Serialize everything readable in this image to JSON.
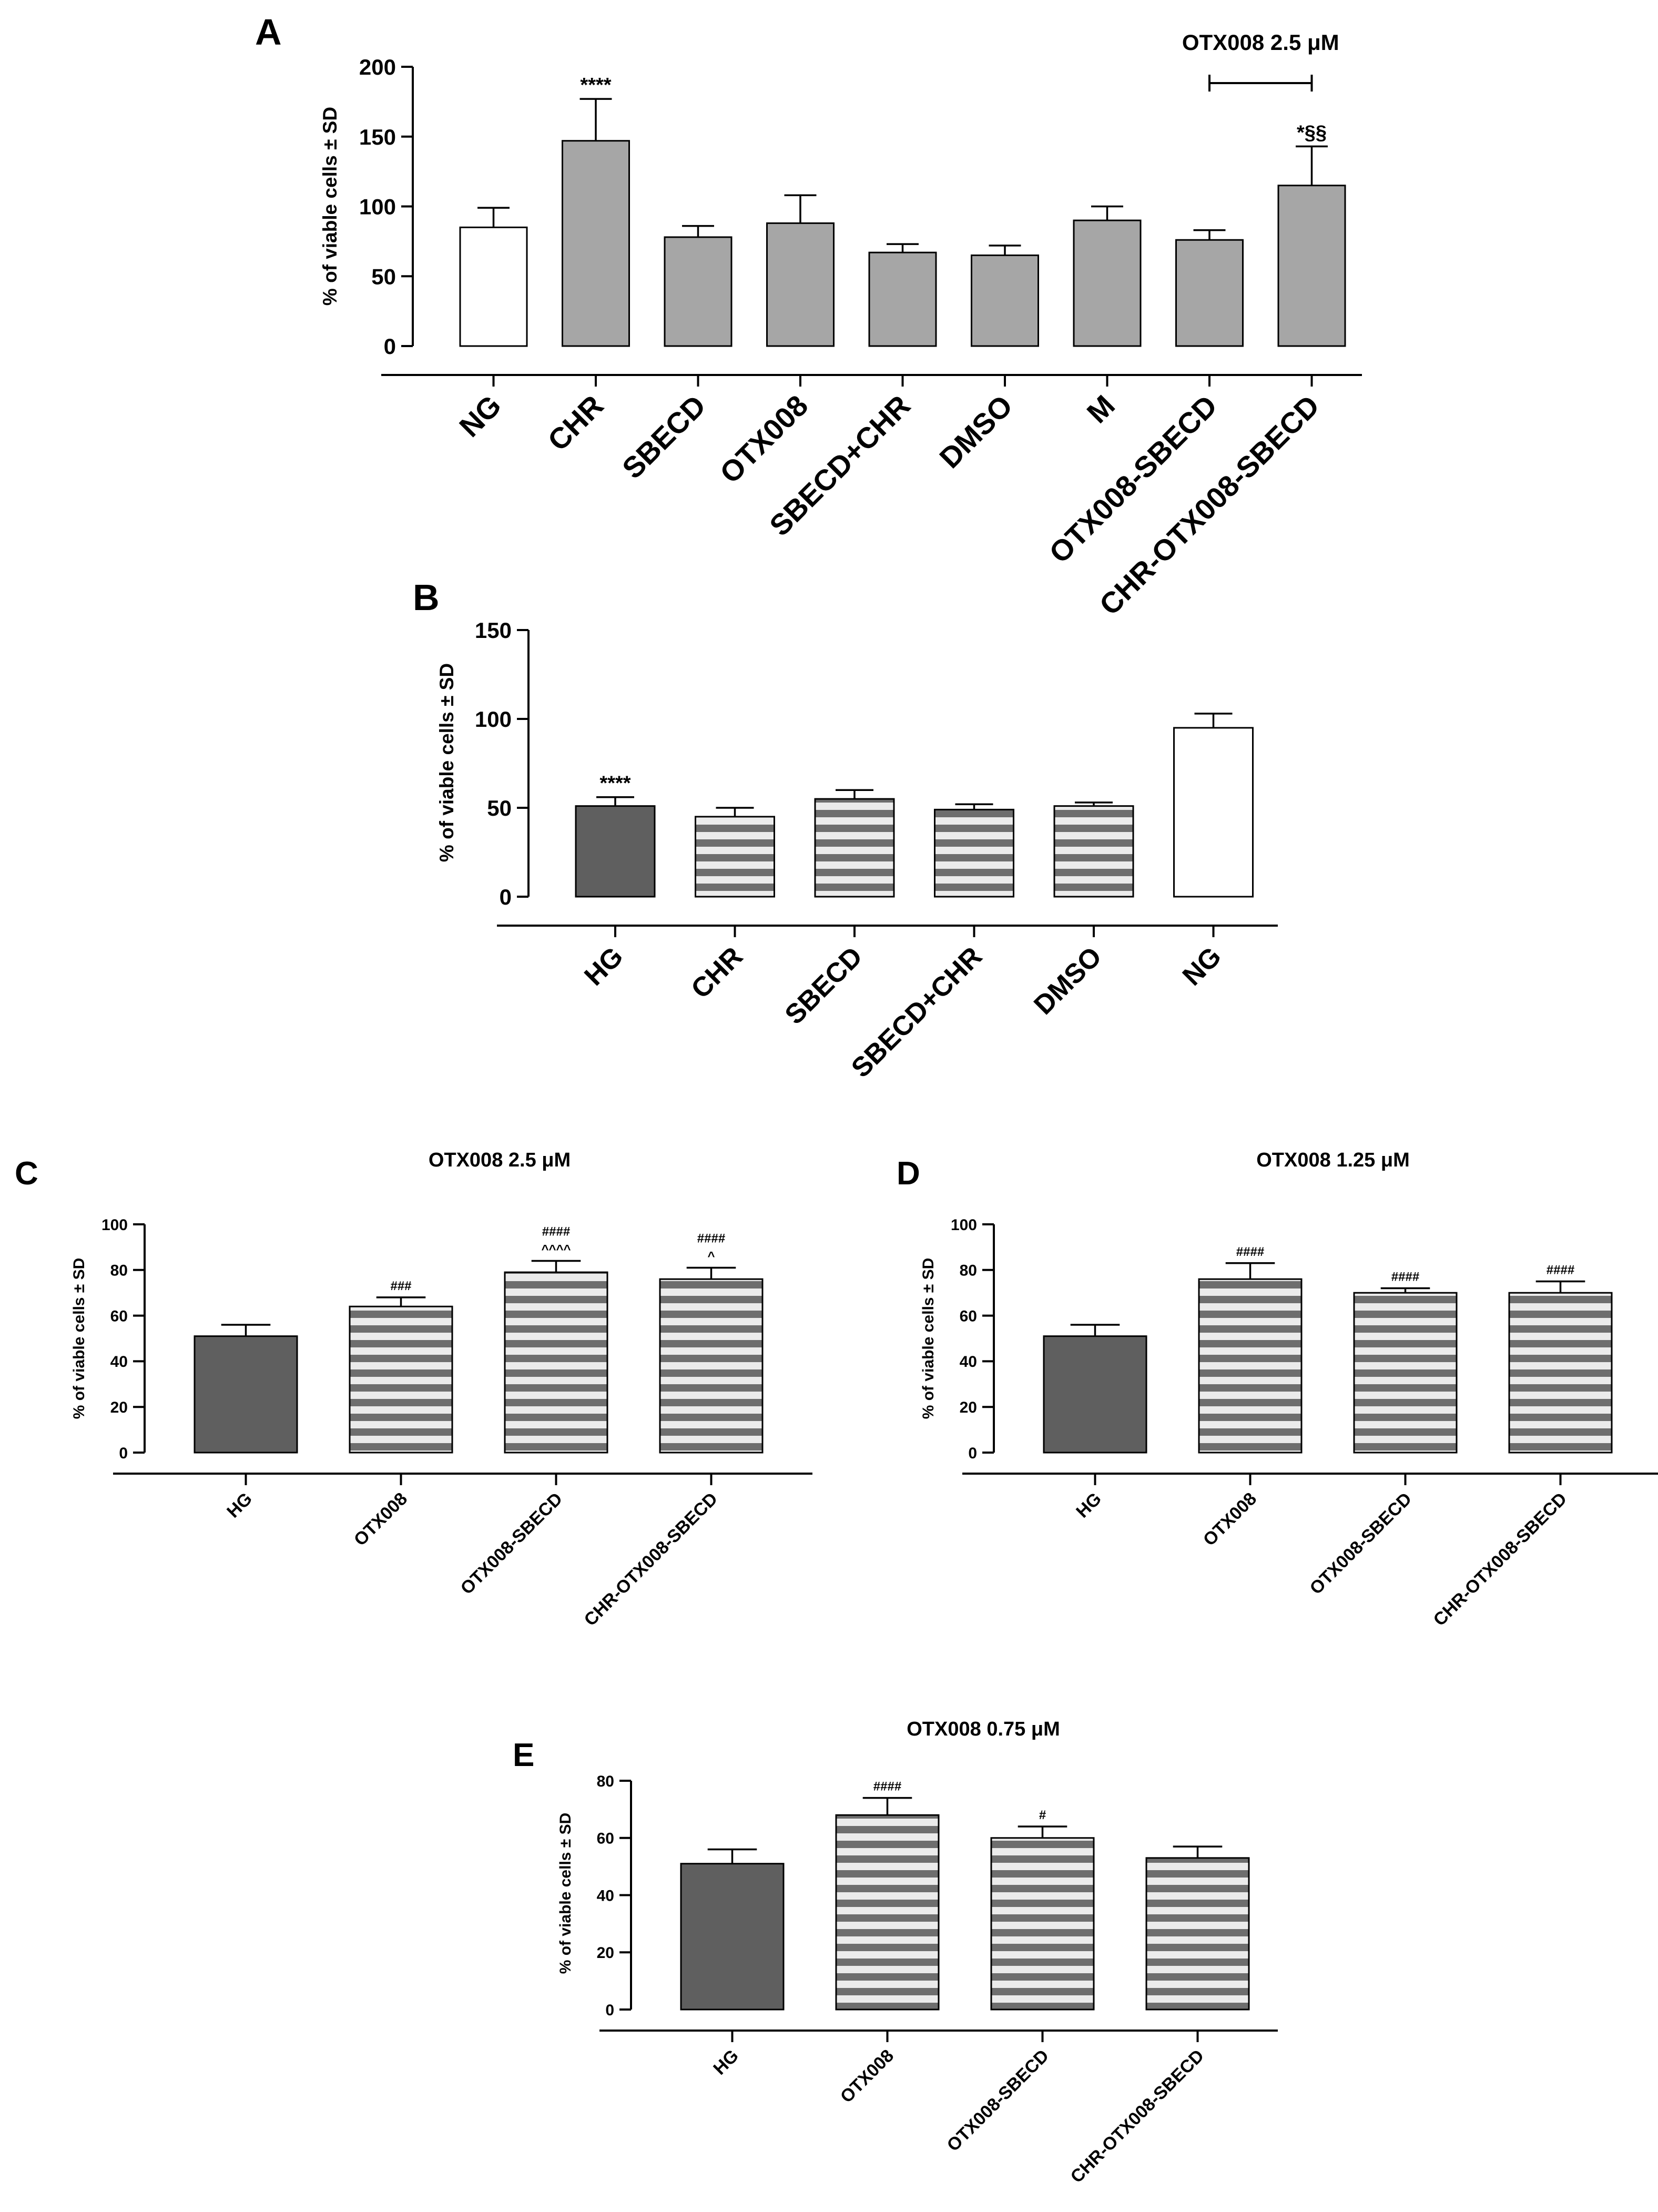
{
  "colors": {
    "white_bar": "#ffffff",
    "gray_bar": "#a6a6a6",
    "dark_bar": "#5f5f5f",
    "stripe_dark": "#6e6e6e",
    "stripe_light": "#ebebeb",
    "ink": "#000000"
  },
  "chart_data": [
    {
      "panel": "A",
      "type": "bar",
      "title": "",
      "ylabel": "% of viable cells ± SD",
      "xlabel": "",
      "ylim": [
        0,
        200
      ],
      "yticks": [
        0,
        50,
        100,
        150,
        200
      ],
      "categories": [
        "NG",
        "CHR",
        "SBECD",
        "OTX008",
        "SBECD+CHR",
        "DMSO",
        "M",
        "OTX008-SBECD",
        "CHR-OTX008-SBECD"
      ],
      "values": [
        85,
        147,
        78,
        88,
        67,
        65,
        90,
        76,
        115
      ],
      "errors": [
        14,
        30,
        8,
        20,
        6,
        7,
        10,
        7,
        28
      ],
      "fills": [
        "white",
        "gray",
        "gray",
        "gray",
        "gray",
        "gray",
        "gray",
        "gray",
        "gray"
      ],
      "annotations": [
        "",
        "****",
        "",
        "",
        "",
        "",
        "",
        "",
        "*§§"
      ],
      "bracket": {
        "label": "OTX008 2.5 μM",
        "from": 7,
        "to": 8
      }
    },
    {
      "panel": "B",
      "type": "bar",
      "title": "",
      "ylabel": "% of viable cells ± SD",
      "xlabel": "",
      "ylim": [
        0,
        150
      ],
      "yticks": [
        0,
        50,
        100,
        150
      ],
      "categories": [
        "HG",
        "CHR",
        "SBECD",
        "SBECD+CHR",
        "DMSO",
        "NG"
      ],
      "values": [
        51,
        45,
        55,
        49,
        51,
        95
      ],
      "errors": [
        5,
        5,
        5,
        3,
        2,
        8
      ],
      "fills": [
        "dark",
        "striped",
        "striped",
        "striped",
        "striped",
        "white"
      ],
      "annotations": [
        "****",
        "",
        "",
        "",
        "",
        ""
      ]
    },
    {
      "panel": "C",
      "type": "bar",
      "title": "OTX008 2.5 μM",
      "ylabel": "% of viable cells ± SD",
      "xlabel": "",
      "ylim": [
        0,
        100
      ],
      "yticks": [
        0,
        20,
        40,
        60,
        80,
        100
      ],
      "categories": [
        "HG",
        "OTX008",
        "OTX008-SBECD",
        "CHR-OTX008-SBECD"
      ],
      "values": [
        51,
        64,
        79,
        76
      ],
      "errors": [
        5,
        4,
        5,
        5
      ],
      "fills": [
        "dark",
        "striped",
        "striped",
        "striped"
      ],
      "annotations": [
        [],
        [
          "###"
        ],
        [
          "####",
          "^^^^"
        ],
        [
          "####",
          "^"
        ]
      ]
    },
    {
      "panel": "D",
      "type": "bar",
      "title": "OTX008 1.25 μM",
      "ylabel": "% of viable cells ± SD",
      "xlabel": "",
      "ylim": [
        0,
        100
      ],
      "yticks": [
        0,
        20,
        40,
        60,
        80,
        100
      ],
      "categories": [
        "HG",
        "OTX008",
        "OTX008-SBECD",
        "CHR-OTX008-SBECD"
      ],
      "values": [
        51,
        76,
        70,
        70
      ],
      "errors": [
        5,
        7,
        2,
        5
      ],
      "fills": [
        "dark",
        "striped",
        "striped",
        "striped"
      ],
      "annotations": [
        [],
        [
          "####"
        ],
        [
          "####"
        ],
        [
          "####"
        ]
      ]
    },
    {
      "panel": "E",
      "type": "bar",
      "title": "OTX008 0.75 μM",
      "ylabel": "% of viable cells ± SD",
      "xlabel": "",
      "ylim": [
        0,
        80
      ],
      "yticks": [
        0,
        20,
        40,
        60,
        80
      ],
      "categories": [
        "HG",
        "OTX008",
        "OTX008-SBECD",
        "CHR-OTX008-SBECD"
      ],
      "values": [
        51,
        68,
        60,
        53
      ],
      "errors": [
        5,
        6,
        4,
        4
      ],
      "fills": [
        "dark",
        "striped",
        "striped",
        "striped"
      ],
      "annotations": [
        [],
        [
          "####"
        ],
        [
          "#"
        ],
        []
      ]
    }
  ]
}
